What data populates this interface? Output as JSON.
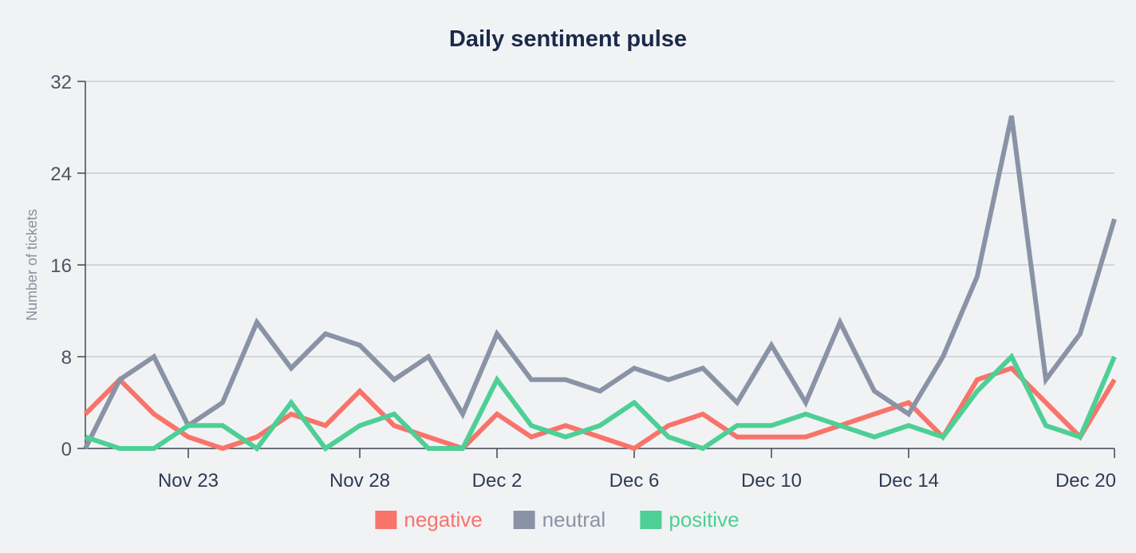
{
  "chart_data": {
    "type": "line",
    "title": "Daily sentiment pulse",
    "xlabel": "",
    "ylabel": "Number of tickets",
    "ylim": [
      0,
      32
    ],
    "yticks": [
      0,
      8,
      16,
      24,
      32
    ],
    "grid": true,
    "legend_position": "bottom-center",
    "x_start": "2020-11-20",
    "xticks": [
      {
        "label": "Nov 23",
        "day": 3
      },
      {
        "label": "Nov 28",
        "day": 8
      },
      {
        "label": "Dec 2",
        "day": 12
      },
      {
        "label": "Dec 6",
        "day": 16
      },
      {
        "label": "Dec 10",
        "day": 20
      },
      {
        "label": "Dec 14",
        "day": 24
      },
      {
        "label": "Dec 20",
        "day": 30
      }
    ],
    "series": [
      {
        "name": "negative",
        "color": "#f8736a",
        "values": [
          3,
          6,
          3,
          1,
          0,
          1,
          3,
          2,
          5,
          2,
          1,
          0,
          3,
          1,
          2,
          1,
          0,
          2,
          3,
          1,
          1,
          1,
          2,
          3,
          4,
          1,
          6,
          7,
          4,
          1,
          6
        ]
      },
      {
        "name": "neutral",
        "color": "#8a93a6",
        "values": [
          0,
          6,
          8,
          2,
          4,
          11,
          7,
          10,
          9,
          6,
          8,
          3,
          10,
          6,
          6,
          5,
          7,
          6,
          7,
          4,
          9,
          4,
          11,
          5,
          3,
          8,
          15,
          29,
          6,
          10,
          20
        ]
      },
      {
        "name": "positive",
        "color": "#4dcf95",
        "values": [
          1,
          0,
          0,
          2,
          2,
          0,
          4,
          0,
          2,
          3,
          0,
          0,
          6,
          2,
          1,
          2,
          4,
          1,
          0,
          2,
          2,
          3,
          2,
          1,
          2,
          1,
          5,
          8,
          2,
          1,
          8
        ]
      }
    ]
  }
}
